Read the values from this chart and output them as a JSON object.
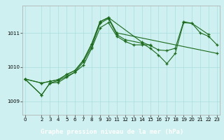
{
  "title": "",
  "xlabel": "Graphe pression niveau de la mer (hPa)",
  "bg_color": "#cff0f0",
  "grid_color": "#aadddd",
  "line_color": "#1a6b1a",
  "ylim": [
    1008.6,
    1011.8
  ],
  "xlim": [
    -0.3,
    23.3
  ],
  "yticks": [
    1009,
    1010,
    1011
  ],
  "xticks": [
    0,
    2,
    3,
    4,
    5,
    6,
    7,
    8,
    9,
    10,
    11,
    12,
    13,
    14,
    15,
    16,
    17,
    18,
    19,
    20,
    21,
    22,
    23
  ],
  "series": [
    [
      0,
      1009.65
    ],
    [
      2,
      1009.18
    ],
    [
      3,
      1009.53
    ],
    [
      4,
      1009.55
    ],
    [
      5,
      1009.7
    ],
    [
      6,
      1009.85
    ],
    [
      7,
      1010.05
    ],
    [
      8,
      1010.55
    ],
    [
      9,
      1011.15
    ],
    [
      10,
      1011.3
    ],
    [
      11,
      1010.9
    ],
    [
      12,
      1010.75
    ],
    [
      13,
      1010.65
    ],
    [
      14,
      1010.65
    ],
    [
      15,
      1010.65
    ]
  ],
  "series2": [
    [
      0,
      1009.65
    ],
    [
      2,
      1009.18
    ],
    [
      3,
      1009.53
    ],
    [
      4,
      1009.6
    ],
    [
      5,
      1009.73
    ],
    [
      6,
      1009.85
    ],
    [
      7,
      1010.15
    ],
    [
      8,
      1010.6
    ],
    [
      9,
      1011.28
    ],
    [
      10,
      1011.42
    ],
    [
      11,
      1010.95
    ],
    [
      12,
      1010.8
    ],
    [
      14,
      1010.7
    ],
    [
      15,
      1010.55
    ],
    [
      16,
      1010.35
    ],
    [
      17,
      1010.1
    ],
    [
      18,
      1010.4
    ],
    [
      19,
      1011.3
    ],
    [
      20,
      1011.28
    ],
    [
      21,
      1011.0
    ],
    [
      22,
      1010.9
    ],
    [
      23,
      1010.65
    ]
  ],
  "series3": [
    [
      0,
      1009.65
    ],
    [
      2,
      1009.53
    ],
    [
      3,
      1009.58
    ],
    [
      4,
      1009.63
    ],
    [
      5,
      1009.78
    ],
    [
      6,
      1009.9
    ],
    [
      7,
      1010.2
    ],
    [
      8,
      1010.68
    ],
    [
      9,
      1011.33
    ],
    [
      10,
      1011.45
    ],
    [
      14,
      1010.73
    ],
    [
      15,
      1010.63
    ],
    [
      16,
      1010.5
    ],
    [
      17,
      1010.48
    ],
    [
      18,
      1010.55
    ],
    [
      19,
      1011.33
    ],
    [
      20,
      1011.28
    ],
    [
      22,
      1010.95
    ]
  ],
  "series4": [
    [
      0,
      1009.65
    ],
    [
      2,
      1009.53
    ],
    [
      3,
      1009.58
    ],
    [
      4,
      1009.63
    ],
    [
      5,
      1009.78
    ],
    [
      6,
      1009.9
    ],
    [
      7,
      1010.2
    ],
    [
      8,
      1010.68
    ],
    [
      9,
      1011.33
    ],
    [
      10,
      1011.45
    ],
    [
      11,
      1011.0
    ],
    [
      23,
      1010.4
    ]
  ]
}
